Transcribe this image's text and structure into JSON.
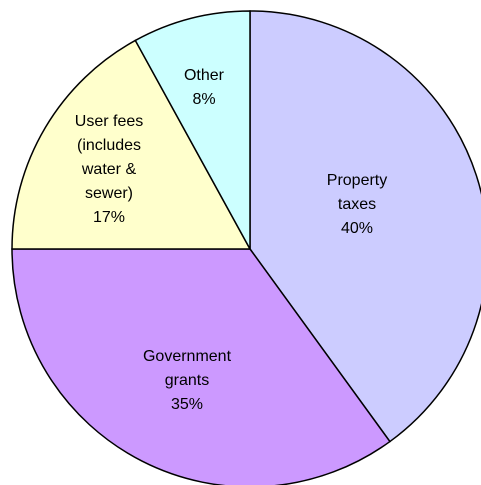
{
  "chart_data": {
    "type": "pie",
    "categories": [
      "Property taxes",
      "Government grants",
      "User fees (includes water & sewer)",
      "Other"
    ],
    "values": [
      40,
      35,
      17,
      8
    ],
    "value_labels": [
      "40%",
      "35%",
      "17%",
      "8%"
    ],
    "colors": [
      "#ccccff",
      "#cc99ff",
      "#ffffcc",
      "#ccffff"
    ]
  }
}
